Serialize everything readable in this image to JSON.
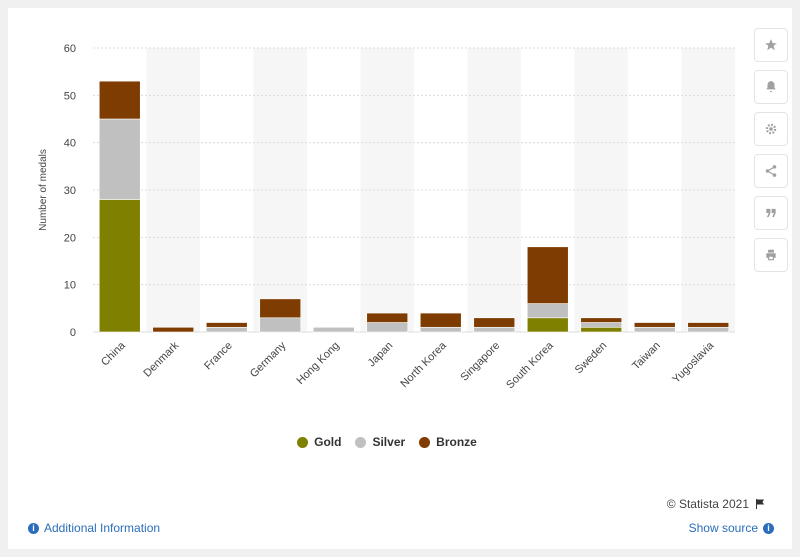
{
  "chart_data": {
    "type": "bar",
    "stacked": true,
    "categories": [
      "China",
      "Denmark",
      "France",
      "Germany",
      "Hong Kong",
      "Japan",
      "North Korea",
      "Singapore",
      "South Korea",
      "Sweden",
      "Taiwan",
      "Yugoslavia"
    ],
    "series": [
      {
        "name": "Gold",
        "color": "#808000",
        "values": [
          28,
          0,
          0,
          0,
          0,
          0,
          0,
          0,
          3,
          1,
          0,
          0
        ]
      },
      {
        "name": "Silver",
        "color": "#c0c0c0",
        "values": [
          17,
          0,
          1,
          3,
          1,
          2,
          1,
          1,
          3,
          1,
          1,
          1
        ]
      },
      {
        "name": "Bronze",
        "color": "#7f3c00",
        "values": [
          8,
          1,
          1,
          4,
          0,
          2,
          3,
          2,
          12,
          1,
          1,
          1
        ]
      }
    ],
    "ylabel": "Number of medals",
    "xlabel": "",
    "ylim": [
      0,
      60
    ],
    "yticks": [
      0,
      10,
      20,
      30,
      40,
      50,
      60
    ],
    "grid": true,
    "legend_position": "bottom"
  },
  "footer": {
    "credit": "© Statista 2021",
    "additional_info": "Additional Information",
    "show_source": "Show source"
  },
  "sidebar_icons": [
    "star-icon",
    "bell-icon",
    "gear-icon",
    "share-icon",
    "quote-icon",
    "print-icon"
  ]
}
